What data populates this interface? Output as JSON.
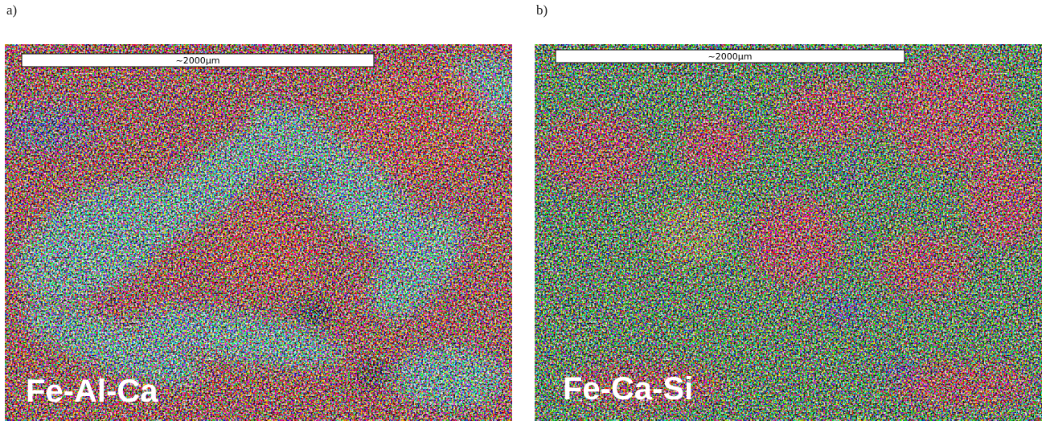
{
  "panels": [
    {
      "label": "a)",
      "scale_bar": "~2000µm",
      "element_label": "Fe-Al-Ca"
    },
    {
      "label": "b)",
      "scale_bar": "~2000µm",
      "element_label": "Fe-Ca-Si"
    }
  ]
}
